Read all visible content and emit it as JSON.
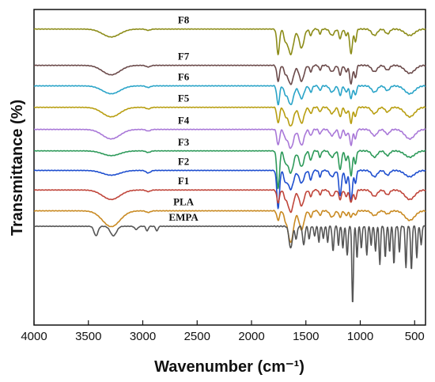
{
  "chart_data": {
    "type": "line",
    "title": "",
    "xlabel": "Wavenumber (cm⁻¹)",
    "ylabel": "Transmittance (%)",
    "xlim": [
      4000,
      400
    ],
    "x_reversed": true,
    "x_ticks": [
      4000,
      3500,
      3000,
      2500,
      2000,
      1500,
      1000,
      500
    ],
    "y_ticks_shown": false,
    "grid": false,
    "legend": "inline-labels",
    "series": [
      {
        "name": "F8",
        "color": "#8c8c18",
        "baseline": 93.8,
        "bands": [
          {
            "x": 3290,
            "depth": 2.5,
            "w": 80
          },
          {
            "x": 2950,
            "depth": 0.4,
            "w": 20
          },
          {
            "x": 1755,
            "depth": 8,
            "w": 12
          },
          {
            "x": 1690,
            "depth": 3,
            "w": 14
          },
          {
            "x": 1640,
            "depth": 8,
            "w": 25
          },
          {
            "x": 1540,
            "depth": 6,
            "w": 22
          },
          {
            "x": 1455,
            "depth": 2,
            "w": 12
          },
          {
            "x": 1370,
            "depth": 1.5,
            "w": 10
          },
          {
            "x": 1260,
            "depth": 2,
            "w": 20
          },
          {
            "x": 1185,
            "depth": 3,
            "w": 12
          },
          {
            "x": 1130,
            "depth": 2,
            "w": 12
          },
          {
            "x": 1085,
            "depth": 8,
            "w": 12
          },
          {
            "x": 1045,
            "depth": 4,
            "w": 10
          },
          {
            "x": 870,
            "depth": 2,
            "w": 25
          },
          {
            "x": 750,
            "depth": 1.5,
            "w": 20
          },
          {
            "x": 545,
            "depth": 2,
            "w": 45
          }
        ]
      },
      {
        "name": "F7",
        "color": "#6b4a4a",
        "baseline": 82.3,
        "bands": [
          {
            "x": 3290,
            "depth": 3,
            "w": 80
          },
          {
            "x": 2950,
            "depth": 0.5,
            "w": 20
          },
          {
            "x": 1755,
            "depth": 5,
            "w": 12
          },
          {
            "x": 1690,
            "depth": 2,
            "w": 14
          },
          {
            "x": 1640,
            "depth": 6,
            "w": 25
          },
          {
            "x": 1540,
            "depth": 5,
            "w": 22
          },
          {
            "x": 1455,
            "depth": 2,
            "w": 12
          },
          {
            "x": 1370,
            "depth": 1.5,
            "w": 10
          },
          {
            "x": 1260,
            "depth": 2,
            "w": 20
          },
          {
            "x": 1185,
            "depth": 3,
            "w": 12
          },
          {
            "x": 1130,
            "depth": 2,
            "w": 12
          },
          {
            "x": 1085,
            "depth": 6,
            "w": 12
          },
          {
            "x": 1045,
            "depth": 4,
            "w": 10
          },
          {
            "x": 870,
            "depth": 2,
            "w": 25
          },
          {
            "x": 750,
            "depth": 1.5,
            "w": 20
          },
          {
            "x": 545,
            "depth": 2.5,
            "w": 45
          }
        ]
      },
      {
        "name": "F6",
        "color": "#2aa4c8",
        "baseline": 75.8,
        "bands": [
          {
            "x": 3290,
            "depth": 2.5,
            "w": 80
          },
          {
            "x": 2950,
            "depth": 0.5,
            "w": 20
          },
          {
            "x": 1755,
            "depth": 6,
            "w": 12
          },
          {
            "x": 1690,
            "depth": 2,
            "w": 14
          },
          {
            "x": 1640,
            "depth": 6,
            "w": 25
          },
          {
            "x": 1540,
            "depth": 4,
            "w": 22
          },
          {
            "x": 1455,
            "depth": 2,
            "w": 12
          },
          {
            "x": 1370,
            "depth": 1.5,
            "w": 10
          },
          {
            "x": 1260,
            "depth": 2,
            "w": 20
          },
          {
            "x": 1185,
            "depth": 3,
            "w": 12
          },
          {
            "x": 1130,
            "depth": 2,
            "w": 12
          },
          {
            "x": 1085,
            "depth": 4,
            "w": 12
          },
          {
            "x": 1045,
            "depth": 3,
            "w": 10
          },
          {
            "x": 870,
            "depth": 2,
            "w": 25
          },
          {
            "x": 750,
            "depth": 1.5,
            "w": 20
          },
          {
            "x": 545,
            "depth": 2.5,
            "w": 45
          }
        ]
      },
      {
        "name": "F5",
        "color": "#b89e10",
        "baseline": 69.0,
        "bands": [
          {
            "x": 3290,
            "depth": 3,
            "w": 80
          },
          {
            "x": 2950,
            "depth": 0.5,
            "w": 20
          },
          {
            "x": 1755,
            "depth": 5,
            "w": 12
          },
          {
            "x": 1690,
            "depth": 2,
            "w": 14
          },
          {
            "x": 1640,
            "depth": 6,
            "w": 25
          },
          {
            "x": 1540,
            "depth": 5,
            "w": 22
          },
          {
            "x": 1455,
            "depth": 2,
            "w": 12
          },
          {
            "x": 1370,
            "depth": 1.5,
            "w": 10
          },
          {
            "x": 1260,
            "depth": 2,
            "w": 20
          },
          {
            "x": 1185,
            "depth": 3,
            "w": 12
          },
          {
            "x": 1130,
            "depth": 2,
            "w": 12
          },
          {
            "x": 1085,
            "depth": 5,
            "w": 12
          },
          {
            "x": 1045,
            "depth": 3,
            "w": 10
          },
          {
            "x": 870,
            "depth": 2,
            "w": 25
          },
          {
            "x": 750,
            "depth": 1.5,
            "w": 20
          },
          {
            "x": 545,
            "depth": 3,
            "w": 45
          }
        ]
      },
      {
        "name": "F4",
        "color": "#a978d8",
        "baseline": 62.0,
        "bands": [
          {
            "x": 3290,
            "depth": 3,
            "w": 80
          },
          {
            "x": 2950,
            "depth": 0.5,
            "w": 20
          },
          {
            "x": 1755,
            "depth": 5,
            "w": 12
          },
          {
            "x": 1690,
            "depth": 2,
            "w": 14
          },
          {
            "x": 1640,
            "depth": 6,
            "w": 25
          },
          {
            "x": 1540,
            "depth": 5,
            "w": 22
          },
          {
            "x": 1455,
            "depth": 2,
            "w": 12
          },
          {
            "x": 1370,
            "depth": 1.5,
            "w": 10
          },
          {
            "x": 1260,
            "depth": 2,
            "w": 20
          },
          {
            "x": 1185,
            "depth": 3,
            "w": 12
          },
          {
            "x": 1130,
            "depth": 2,
            "w": 12
          },
          {
            "x": 1085,
            "depth": 5,
            "w": 12
          },
          {
            "x": 1045,
            "depth": 3,
            "w": 10
          },
          {
            "x": 870,
            "depth": 2,
            "w": 25
          },
          {
            "x": 750,
            "depth": 1.5,
            "w": 20
          },
          {
            "x": 545,
            "depth": 3,
            "w": 45
          }
        ]
      },
      {
        "name": "F3",
        "color": "#2e9a5a",
        "baseline": 55.2,
        "bands": [
          {
            "x": 3290,
            "depth": 1.5,
            "w": 80
          },
          {
            "x": 2950,
            "depth": 0.5,
            "w": 20
          },
          {
            "x": 1755,
            "depth": 12,
            "w": 12
          },
          {
            "x": 1690,
            "depth": 3,
            "w": 14
          },
          {
            "x": 1640,
            "depth": 7,
            "w": 25
          },
          {
            "x": 1540,
            "depth": 5,
            "w": 22
          },
          {
            "x": 1455,
            "depth": 3,
            "w": 12
          },
          {
            "x": 1370,
            "depth": 2,
            "w": 10
          },
          {
            "x": 1260,
            "depth": 2,
            "w": 20
          },
          {
            "x": 1185,
            "depth": 6,
            "w": 12
          },
          {
            "x": 1130,
            "depth": 3,
            "w": 12
          },
          {
            "x": 1085,
            "depth": 8,
            "w": 12
          },
          {
            "x": 1045,
            "depth": 4,
            "w": 10
          },
          {
            "x": 870,
            "depth": 2,
            "w": 25
          },
          {
            "x": 750,
            "depth": 1.5,
            "w": 20
          },
          {
            "x": 545,
            "depth": 2,
            "w": 45
          }
        ]
      },
      {
        "name": "F2",
        "color": "#1f4fcf",
        "baseline": 49.0,
        "bands": [
          {
            "x": 3290,
            "depth": 1.5,
            "w": 80
          },
          {
            "x": 2950,
            "depth": 0.8,
            "w": 20
          },
          {
            "x": 1755,
            "depth": 12,
            "w": 12
          },
          {
            "x": 1690,
            "depth": 3,
            "w": 14
          },
          {
            "x": 1640,
            "depth": 6,
            "w": 25
          },
          {
            "x": 1540,
            "depth": 4,
            "w": 22
          },
          {
            "x": 1455,
            "depth": 3,
            "w": 12
          },
          {
            "x": 1370,
            "depth": 2,
            "w": 10
          },
          {
            "x": 1260,
            "depth": 2,
            "w": 20
          },
          {
            "x": 1185,
            "depth": 8,
            "w": 12
          },
          {
            "x": 1130,
            "depth": 4,
            "w": 12
          },
          {
            "x": 1085,
            "depth": 10,
            "w": 12
          },
          {
            "x": 1045,
            "depth": 4,
            "w": 10
          },
          {
            "x": 870,
            "depth": 2,
            "w": 25
          },
          {
            "x": 750,
            "depth": 1.5,
            "w": 20
          },
          {
            "x": 545,
            "depth": 2,
            "w": 45
          }
        ]
      },
      {
        "name": "F1",
        "color": "#c0453a",
        "baseline": 42.8,
        "bands": [
          {
            "x": 3290,
            "depth": 3,
            "w": 80
          },
          {
            "x": 2950,
            "depth": 0.5,
            "w": 20
          },
          {
            "x": 1755,
            "depth": 4,
            "w": 12
          },
          {
            "x": 1690,
            "depth": 2,
            "w": 14
          },
          {
            "x": 1640,
            "depth": 7,
            "w": 25
          },
          {
            "x": 1540,
            "depth": 5,
            "w": 22
          },
          {
            "x": 1455,
            "depth": 2,
            "w": 12
          },
          {
            "x": 1370,
            "depth": 1.5,
            "w": 10
          },
          {
            "x": 1260,
            "depth": 2,
            "w": 20
          },
          {
            "x": 1185,
            "depth": 3,
            "w": 12
          },
          {
            "x": 1130,
            "depth": 2,
            "w": 12
          },
          {
            "x": 1085,
            "depth": 4,
            "w": 12
          },
          {
            "x": 1045,
            "depth": 3,
            "w": 10
          },
          {
            "x": 870,
            "depth": 2,
            "w": 25
          },
          {
            "x": 750,
            "depth": 1.5,
            "w": 20
          },
          {
            "x": 545,
            "depth": 3,
            "w": 45
          }
        ]
      },
      {
        "name": "PLA",
        "color": "#c98a22",
        "baseline": 36.2,
        "bands": [
          {
            "x": 3290,
            "depth": 5,
            "w": 80
          },
          {
            "x": 2950,
            "depth": 0.5,
            "w": 20
          },
          {
            "x": 1755,
            "depth": 3,
            "w": 12
          },
          {
            "x": 1690,
            "depth": 2,
            "w": 14
          },
          {
            "x": 1640,
            "depth": 10,
            "w": 25
          },
          {
            "x": 1540,
            "depth": 6,
            "w": 22
          },
          {
            "x": 1455,
            "depth": 2,
            "w": 12
          },
          {
            "x": 1370,
            "depth": 1.5,
            "w": 10
          },
          {
            "x": 1260,
            "depth": 2,
            "w": 20
          },
          {
            "x": 1185,
            "depth": 2,
            "w": 12
          },
          {
            "x": 1130,
            "depth": 1.5,
            "w": 12
          },
          {
            "x": 1085,
            "depth": 2,
            "w": 12
          },
          {
            "x": 1045,
            "depth": 1.5,
            "w": 10
          },
          {
            "x": 870,
            "depth": 1.5,
            "w": 25
          },
          {
            "x": 750,
            "depth": 1,
            "w": 20
          },
          {
            "x": 545,
            "depth": 3,
            "w": 45
          }
        ]
      },
      {
        "name": "EMPA",
        "color": "#555555",
        "baseline": 31.3,
        "bands": [
          {
            "x": 3430,
            "depth": 3,
            "w": 18
          },
          {
            "x": 3270,
            "depth": 3,
            "w": 28
          },
          {
            "x": 3060,
            "depth": 1,
            "w": 15
          },
          {
            "x": 2960,
            "depth": 1.5,
            "w": 10
          },
          {
            "x": 2870,
            "depth": 1.5,
            "w": 10
          },
          {
            "x": 1640,
            "depth": 7,
            "w": 15
          },
          {
            "x": 1590,
            "depth": 4,
            "w": 10
          },
          {
            "x": 1520,
            "depth": 6,
            "w": 10
          },
          {
            "x": 1470,
            "depth": 4,
            "w": 8
          },
          {
            "x": 1420,
            "depth": 3,
            "w": 8
          },
          {
            "x": 1380,
            "depth": 5,
            "w": 7
          },
          {
            "x": 1340,
            "depth": 4,
            "w": 7
          },
          {
            "x": 1300,
            "depth": 5,
            "w": 7
          },
          {
            "x": 1250,
            "depth": 8,
            "w": 8
          },
          {
            "x": 1200,
            "depth": 6,
            "w": 7
          },
          {
            "x": 1160,
            "depth": 7,
            "w": 7
          },
          {
            "x": 1120,
            "depth": 9,
            "w": 8
          },
          {
            "x": 1070,
            "depth": 25,
            "w": 7
          },
          {
            "x": 1030,
            "depth": 10,
            "w": 7
          },
          {
            "x": 990,
            "depth": 7,
            "w": 7
          },
          {
            "x": 940,
            "depth": 9,
            "w": 7
          },
          {
            "x": 900,
            "depth": 6,
            "w": 7
          },
          {
            "x": 860,
            "depth": 8,
            "w": 7
          },
          {
            "x": 820,
            "depth": 12,
            "w": 7
          },
          {
            "x": 770,
            "depth": 10,
            "w": 7
          },
          {
            "x": 730,
            "depth": 8,
            "w": 7
          },
          {
            "x": 690,
            "depth": 12,
            "w": 7
          },
          {
            "x": 640,
            "depth": 8,
            "w": 7
          },
          {
            "x": 580,
            "depth": 13,
            "w": 7
          },
          {
            "x": 530,
            "depth": 14,
            "w": 7
          },
          {
            "x": 480,
            "depth": 10,
            "w": 7
          },
          {
            "x": 440,
            "depth": 6,
            "w": 7
          }
        ]
      }
    ]
  }
}
